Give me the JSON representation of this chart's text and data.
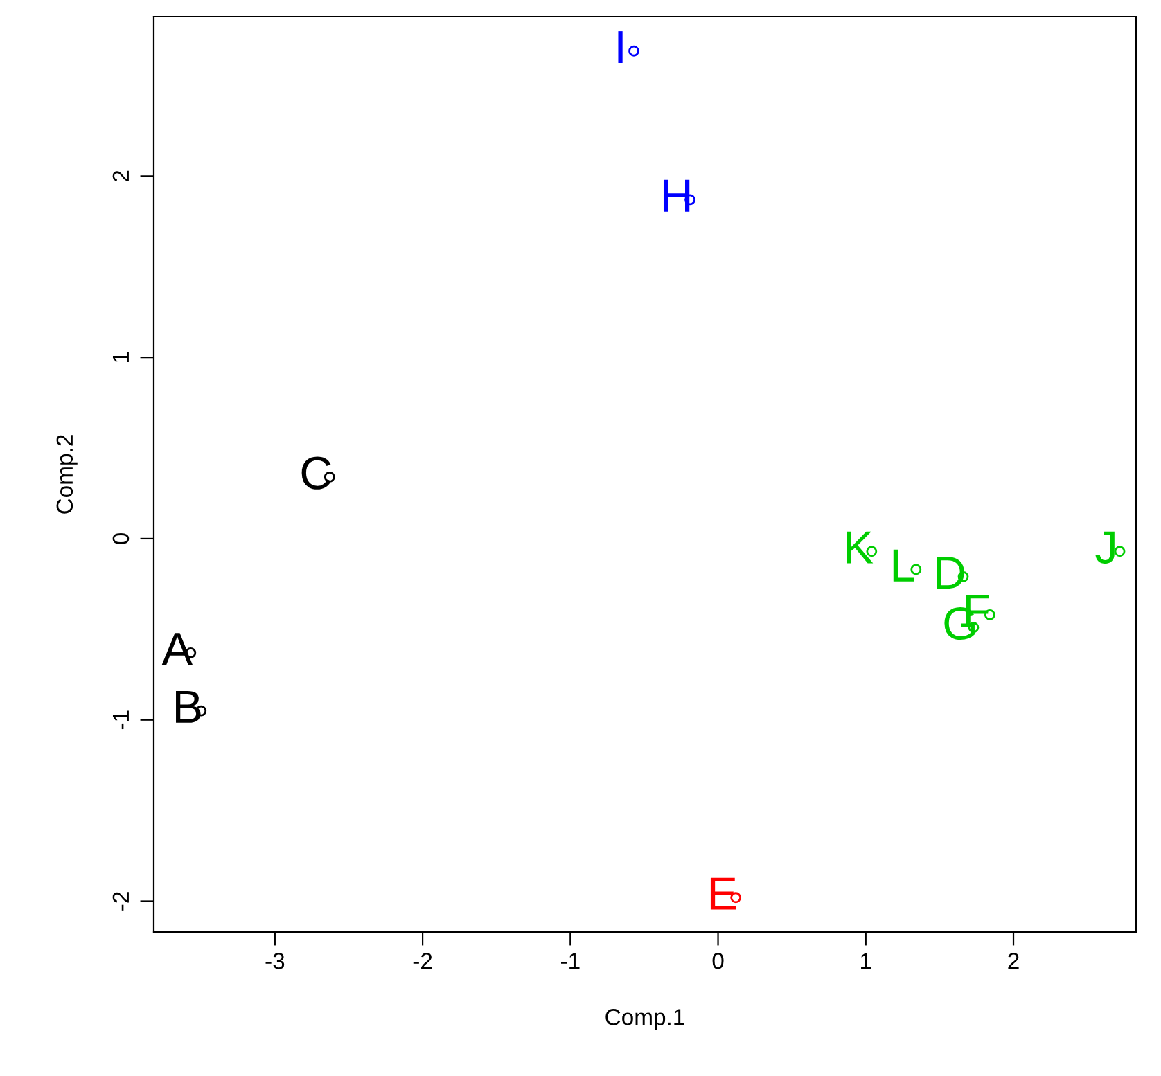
{
  "chart_data": {
    "type": "scatter",
    "xlabel": "Comp.1",
    "ylabel": "Comp.2",
    "xlim": [
      -3.82,
      2.83
    ],
    "ylim": [
      -2.17,
      2.88
    ],
    "xticks": [
      -3,
      -2,
      -1,
      0,
      1,
      2
    ],
    "yticks": [
      -2,
      -1,
      0,
      1,
      2
    ],
    "grid": false,
    "legend": false,
    "marker": "circle",
    "series": [
      {
        "color": "#000000",
        "x": [
          -3.57,
          -3.5,
          -2.63
        ],
        "values": [
          -0.63,
          -0.95,
          0.34
        ],
        "value_labels": [
          "A",
          "B",
          "C"
        ]
      },
      {
        "color": "#00cd00",
        "x": [
          1.66,
          1.84,
          1.73,
          2.72,
          1.04,
          1.34
        ],
        "values": [
          -0.21,
          -0.42,
          -0.49,
          -0.07,
          -0.07,
          -0.17
        ],
        "value_labels": [
          "D",
          "F",
          "G",
          "J",
          "K",
          "L"
        ]
      },
      {
        "color": "#0000ff",
        "x": [
          -0.19,
          -0.57
        ],
        "values": [
          1.87,
          2.69
        ],
        "value_labels": [
          "H",
          "I"
        ]
      },
      {
        "color": "#ff0000",
        "x": [
          0.12
        ],
        "values": [
          -1.98
        ],
        "value_labels": [
          "E"
        ]
      }
    ]
  }
}
